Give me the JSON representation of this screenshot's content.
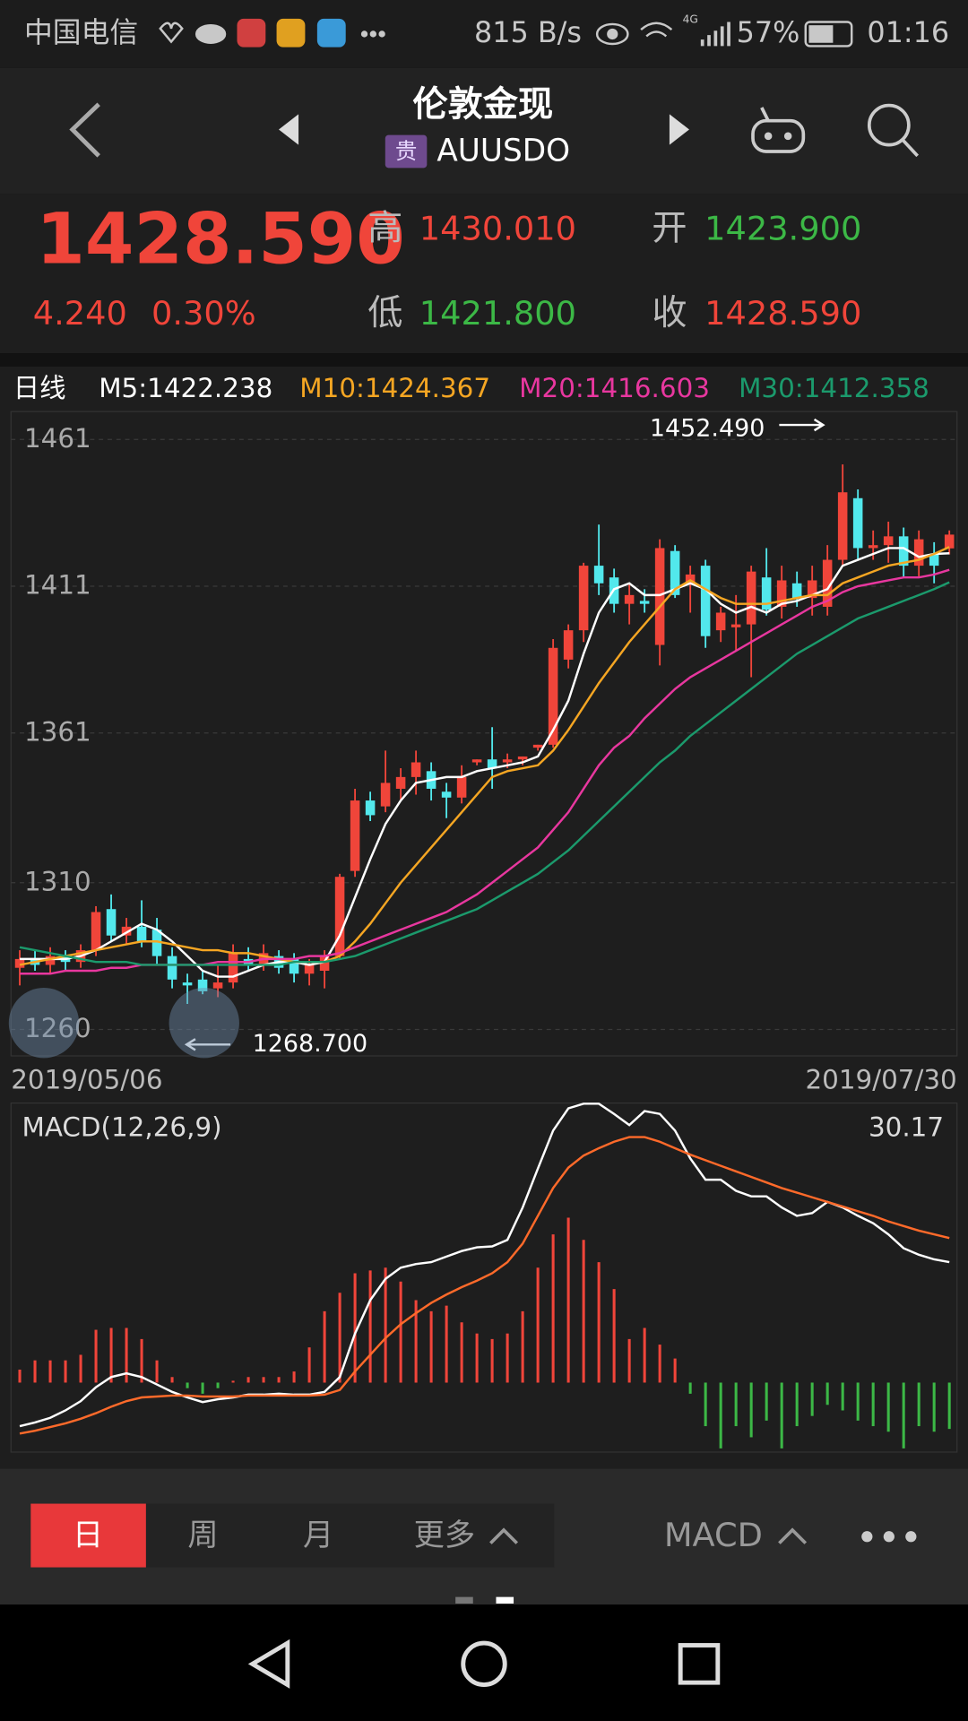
{
  "status_bar": {
    "carrier": "中国电信",
    "speed": "815 B/s",
    "network": "4G",
    "battery": "57%",
    "time": "01:16"
  },
  "header": {
    "title": "伦敦金现",
    "badge": "贵",
    "symbol": "AUUSDO"
  },
  "quote": {
    "price": "1428.590",
    "change": "4.240",
    "change_pct": "0.30%",
    "high_label": "高",
    "high": "1430.010",
    "open_label": "开",
    "open": "1423.900",
    "low_label": "低",
    "low": "1421.800",
    "close_label": "收",
    "close": "1428.590"
  },
  "chart_data": [
    {
      "type": "candlestick",
      "period": "日线",
      "categories": [
        "2019/05/06",
        null,
        null,
        null,
        null,
        null,
        null,
        null,
        null,
        null,
        null,
        null,
        null,
        null,
        null,
        null,
        null,
        null,
        null,
        null,
        null,
        null,
        null,
        null,
        null,
        null,
        null,
        null,
        null,
        null,
        null,
        null,
        null,
        null,
        null,
        null,
        null,
        null,
        null,
        null,
        null,
        null,
        null,
        null,
        null,
        null,
        null,
        null,
        null,
        null,
        null,
        null,
        null,
        null,
        null,
        null,
        null,
        null,
        null,
        null,
        null,
        "2019/07/30"
      ],
      "open": [
        1281,
        1284,
        1282,
        1285,
        1283,
        1287,
        1301,
        1292,
        1295,
        1294,
        1285,
        1276,
        1277,
        1274,
        1276,
        1284,
        1282,
        1285,
        1284,
        1279,
        1280,
        1285,
        1314,
        1338,
        1336,
        1342,
        1346,
        1348,
        1341,
        1339,
        1351,
        1352,
        1351,
        1352,
        1356,
        1357,
        1386,
        1396,
        1418,
        1414,
        1405,
        1406,
        1391,
        1423,
        1412,
        1418,
        1396,
        1397,
        1398,
        1414,
        1404,
        1412,
        1407,
        1404,
        1420,
        1441,
        1424,
        1425,
        1428,
        1418,
        1422,
        1423.9
      ],
      "high": [
        1287,
        1287,
        1288,
        1287,
        1289,
        1302,
        1306,
        1298,
        1304,
        1298,
        1288,
        1279,
        1280,
        1282,
        1289,
        1288,
        1289,
        1287,
        1286,
        1284,
        1287,
        1313,
        1342,
        1341,
        1355,
        1349,
        1355,
        1351,
        1344,
        1350,
        1352,
        1363,
        1354,
        1353,
        1357,
        1393,
        1398,
        1419,
        1432,
        1417,
        1412,
        1410,
        1427,
        1425,
        1418,
        1420,
        1404,
        1408,
        1418,
        1424,
        1418,
        1416,
        1418,
        1425,
        1452.49,
        1444,
        1430,
        1433,
        1431,
        1430,
        1426,
        1430.01
      ],
      "low": [
        1275,
        1280,
        1279,
        1280,
        1281,
        1285,
        1290,
        1289,
        1288,
        1282,
        1274,
        1268.7,
        1272,
        1271,
        1274,
        1280,
        1280,
        1279,
        1276,
        1275,
        1274,
        1284,
        1312,
        1331,
        1334,
        1338,
        1340,
        1338,
        1332,
        1337,
        1350,
        1342,
        1349,
        1350,
        1355,
        1356,
        1383,
        1392,
        1408,
        1402,
        1398,
        1402,
        1384,
        1407,
        1402,
        1390,
        1392,
        1389,
        1380,
        1401,
        1400,
        1404,
        1401,
        1401,
        1418,
        1420,
        1420,
        1419,
        1414,
        1414,
        1412,
        1421.8
      ],
      "close": [
        1284,
        1282,
        1285,
        1283,
        1287,
        1300,
        1292,
        1295,
        1290,
        1285,
        1277,
        1275,
        1273,
        1276,
        1286,
        1282,
        1286,
        1281,
        1279,
        1282,
        1285,
        1312,
        1338,
        1333,
        1344,
        1346,
        1351,
        1342,
        1339,
        1346,
        1352,
        1349,
        1352,
        1353,
        1357,
        1390,
        1396,
        1418,
        1412,
        1405,
        1408,
        1405,
        1424,
        1408,
        1415,
        1394,
        1402,
        1398,
        1416,
        1403,
        1413,
        1407,
        1413,
        1420,
        1443,
        1424,
        1425,
        1428,
        1418,
        1427,
        1418,
        1428.59
      ],
      "up_color": "#f0453a",
      "down_color": "#52e8ec",
      "series": [
        {
          "name": "M5:1422.238",
          "color": "#ffffff",
          "values": [
            1284,
            1284,
            1284,
            1284,
            1285,
            1287,
            1290,
            1293,
            1296,
            1294,
            1290,
            1285,
            1280,
            1278,
            1278,
            1280,
            1282,
            1283,
            1283,
            1282,
            1283,
            1292,
            1305,
            1318,
            1330,
            1338,
            1344,
            1345,
            1346,
            1346,
            1348,
            1349,
            1350,
            1351,
            1353,
            1362,
            1372,
            1388,
            1402,
            1410,
            1412,
            1408,
            1408,
            1410,
            1412,
            1410,
            1405,
            1402,
            1404,
            1402,
            1405,
            1406,
            1408,
            1410,
            1418,
            1420,
            1422,
            1424,
            1424,
            1421,
            1422,
            1422.238
          ]
        },
        {
          "name": "M10:1424.367",
          "color": "#f5a623",
          "values": [
            1282,
            1283,
            1284,
            1285,
            1286,
            1287,
            1288,
            1289,
            1290,
            1290,
            1289,
            1288,
            1287,
            1287,
            1286,
            1286,
            1285,
            1284,
            1283,
            1283,
            1283,
            1285,
            1290,
            1296,
            1303,
            1310,
            1316,
            1322,
            1328,
            1334,
            1340,
            1346,
            1348,
            1349,
            1350,
            1355,
            1362,
            1370,
            1378,
            1385,
            1392,
            1398,
            1404,
            1410,
            1413,
            1410,
            1407,
            1405,
            1405,
            1405,
            1406,
            1407,
            1408,
            1408,
            1412,
            1414,
            1416,
            1418,
            1419,
            1420,
            1422,
            1424.367
          ]
        },
        {
          "name": "M20:1416.603",
          "color": "#e8379f",
          "values": [
            1279,
            1279,
            1279,
            1280,
            1280,
            1280,
            1281,
            1281,
            1282,
            1282,
            1282,
            1282,
            1282,
            1283,
            1283,
            1283,
            1284,
            1284,
            1284,
            1285,
            1285,
            1286,
            1288,
            1290,
            1292,
            1294,
            1296,
            1298,
            1300,
            1303,
            1306,
            1310,
            1314,
            1318,
            1322,
            1328,
            1334,
            1342,
            1350,
            1356,
            1360,
            1366,
            1371,
            1376,
            1380,
            1383,
            1386,
            1389,
            1392,
            1395,
            1398,
            1401,
            1404,
            1406,
            1409,
            1411,
            1412,
            1413,
            1414,
            1414,
            1415,
            1416.603
          ]
        },
        {
          "name": "M30:1412.358",
          "color": "#1b9a6c",
          "values": [
            1288,
            1287,
            1286,
            1285,
            1284,
            1283,
            1283,
            1283,
            1282,
            1282,
            1282,
            1282,
            1282,
            1282,
            1282,
            1282,
            1282,
            1282,
            1283,
            1283,
            1283,
            1284,
            1285,
            1287,
            1289,
            1291,
            1293,
            1295,
            1297,
            1299,
            1301,
            1304,
            1307,
            1310,
            1313,
            1317,
            1321,
            1326,
            1331,
            1336,
            1341,
            1346,
            1351,
            1355,
            1360,
            1364,
            1368,
            1372,
            1376,
            1380,
            1384,
            1388,
            1391,
            1394,
            1397,
            1400,
            1402,
            1404,
            1406,
            1408,
            1410,
            1412.358
          ]
        }
      ],
      "max_mark": {
        "value": 1452.49,
        "label": "1452.490"
      },
      "min_mark": {
        "value": 1268.7,
        "label": "1268.700"
      },
      "ylim": [
        1251,
        1470.5
      ],
      "yticks": [
        1260,
        1310,
        1361,
        1411,
        1461
      ],
      "grid": true
    },
    {
      "type": "macd",
      "title": "MACD(12,26,9)",
      "ylim": [
        -7.5,
        30.17
      ],
      "series": [
        {
          "color": "#ffffff",
          "values": [
            -4.7,
            -4.3,
            -3.8,
            -3.0,
            -2.0,
            -0.5,
            0.6,
            1.0,
            0.6,
            -0.2,
            -1.0,
            -1.6,
            -2.1,
            -1.8,
            -1.6,
            -1.3,
            -1.3,
            -1.2,
            -1.3,
            -1.3,
            -1.0,
            0.6,
            5.3,
            8.9,
            11.2,
            12.4,
            12.8,
            13.0,
            13.6,
            14.2,
            14.6,
            14.7,
            15.4,
            18.9,
            23.1,
            27.2,
            29.6,
            30.1,
            30.1,
            29.0,
            27.8,
            29.3,
            29.0,
            27.2,
            24.2,
            21.9,
            21.9,
            20.7,
            20.1,
            20.1,
            18.9,
            18.0,
            18.3,
            19.5,
            18.9,
            18.0,
            17.2,
            16.0,
            14.5,
            13.8,
            13.3,
            13.0
          ]
        },
        {
          "color": "#ff6a2a",
          "values": [
            -5.5,
            -5.2,
            -4.8,
            -4.4,
            -3.9,
            -3.3,
            -2.6,
            -2.0,
            -1.6,
            -1.5,
            -1.4,
            -1.4,
            -1.5,
            -1.5,
            -1.5,
            -1.4,
            -1.4,
            -1.4,
            -1.4,
            -1.4,
            -1.3,
            -0.8,
            1.2,
            3.0,
            4.8,
            6.3,
            7.5,
            8.6,
            9.5,
            10.3,
            11.0,
            11.8,
            13.0,
            15.0,
            18.0,
            21.0,
            23.2,
            24.5,
            25.3,
            26.0,
            26.5,
            26.5,
            26.0,
            25.3,
            24.6,
            24.0,
            23.4,
            22.8,
            22.2,
            21.6,
            21.0,
            20.5,
            20.0,
            19.5,
            19.0,
            18.5,
            18.0,
            17.4,
            16.9,
            16.4,
            16.0,
            15.6
          ]
        }
      ],
      "histogram": {
        "up_color": "#f0453a",
        "down_color": "#3cb846",
        "values": [
          1.4,
          2.4,
          2.4,
          2.4,
          3.0,
          5.7,
          5.9,
          5.9,
          4.7,
          2.4,
          0.6,
          -0.6,
          -1.2,
          -0.6,
          0.2,
          0.6,
          0.6,
          0.6,
          1.2,
          3.8,
          7.7,
          9.7,
          11.8,
          12.1,
          12.4,
          10.9,
          8.9,
          7.7,
          8.3,
          6.5,
          5.3,
          4.7,
          5.3,
          7.7,
          12.4,
          16.0,
          17.8,
          15.4,
          13.0,
          10.1,
          4.7,
          5.9,
          4.1,
          2.6,
          -1.2,
          -4.7,
          -7.1,
          -4.7,
          -5.9,
          -4.1,
          -7.1,
          -4.7,
          -3.6,
          -2.4,
          -3.0,
          -4.1,
          -4.7,
          -5.3,
          -7.1,
          -4.7,
          -5.3,
          -5.0
        ]
      }
    }
  ],
  "tabs": [
    "日",
    "周",
    "月",
    "更多",
    "MACD"
  ]
}
